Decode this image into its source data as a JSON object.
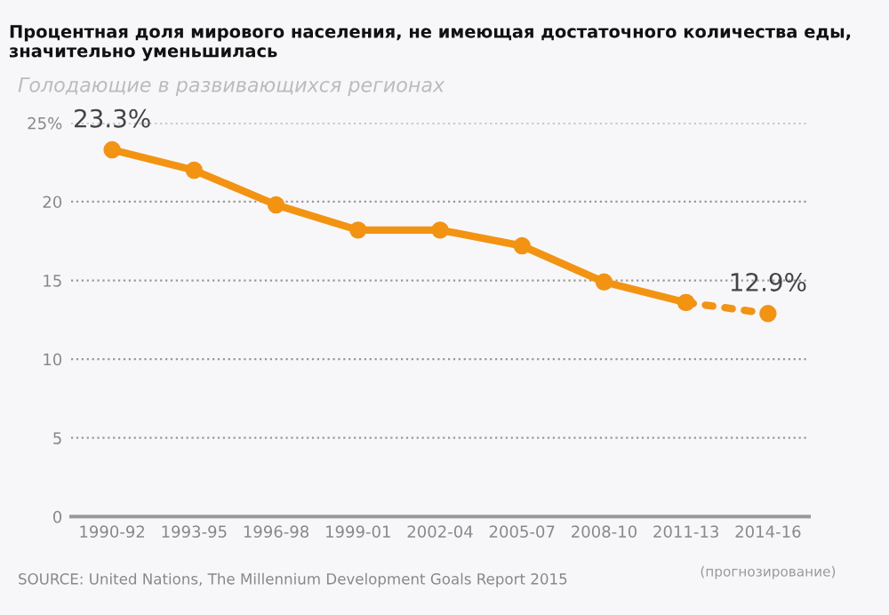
{
  "chart_data": {
    "type": "line",
    "title": "Процентная доля мирового населения, не имеющая достаточного количества еды, значительно уменьшилась",
    "subtitle": "Голодающие в развивающихся регионах",
    "categories": [
      "1990-92",
      "1993-95",
      "1996-98",
      "1999-01",
      "2002-04",
      "2005-07",
      "2008-10",
      "2011-13",
      "2014-16"
    ],
    "series": [
      {
        "color": "#f39312",
        "line_style": "solid",
        "values": [
          23.3,
          22.0,
          19.8,
          18.2,
          18.2,
          17.2,
          14.9,
          13.6,
          null
        ],
        "value_labels": [
          "23.3%",
          null,
          null,
          null,
          null,
          null,
          null,
          null,
          null
        ]
      },
      {
        "color": "#f39312",
        "line_style": "dotted",
        "values": [
          null,
          null,
          null,
          null,
          null,
          null,
          null,
          13.6,
          12.9
        ],
        "value_labels": [
          null,
          null,
          null,
          null,
          null,
          null,
          null,
          null,
          "12.9%"
        ]
      }
    ],
    "ylim": [
      0,
      25
    ],
    "yticks": [
      0,
      5,
      10,
      15,
      20,
      {
        "value": 25,
        "label": "25%"
      }
    ],
    "grid": "y",
    "marker": "circle",
    "annotations": [
      "(прогнозирование)",
      "SOURCE: United Nations, The Millennium Development Goals Report 2015"
    ]
  }
}
